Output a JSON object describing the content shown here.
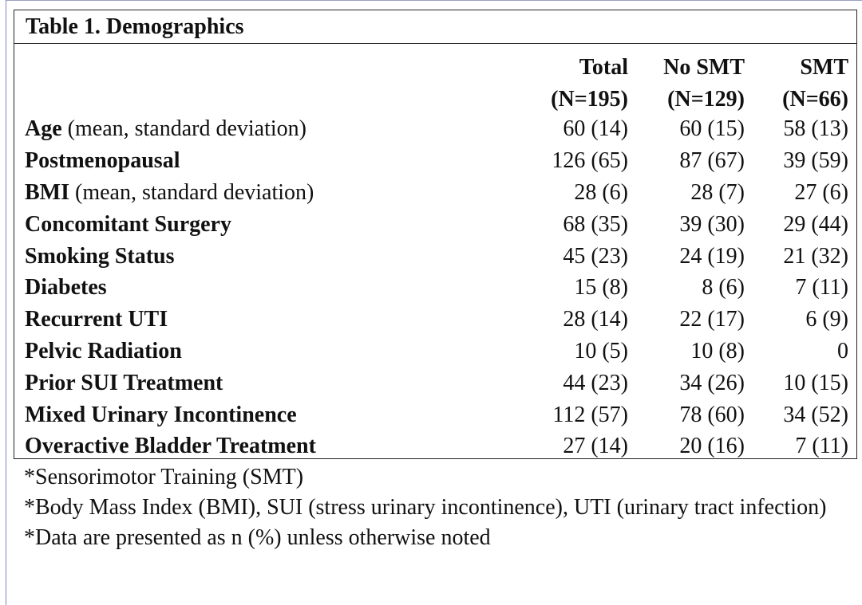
{
  "title": "Table 1. Demographics",
  "columns": [
    {
      "name": "Total",
      "n": "(N=195)"
    },
    {
      "name": "No SMT",
      "n": "(N=129)"
    },
    {
      "name": "SMT",
      "n": "(N=66)"
    }
  ],
  "rows": [
    {
      "label": "Age",
      "note": " (mean, standard deviation)",
      "values": [
        "60 (14)",
        "60 (15)",
        "58 (13)"
      ]
    },
    {
      "label": "Postmenopausal",
      "note": "",
      "values": [
        "126 (65)",
        "87 (67)",
        "39 (59)"
      ]
    },
    {
      "label": "BMI",
      "note": " (mean, standard deviation)",
      "values": [
        "28 (6)",
        "28 (7)",
        "27 (6)"
      ]
    },
    {
      "label": "Concomitant Surgery",
      "note": "",
      "values": [
        "68 (35)",
        "39 (30)",
        "29 (44)"
      ]
    },
    {
      "label": "Smoking Status",
      "note": "",
      "values": [
        "45 (23)",
        "24 (19)",
        "21 (32)"
      ]
    },
    {
      "label": "Diabetes",
      "note": "",
      "values": [
        "15 (8)",
        "8 (6)",
        "7 (11)"
      ]
    },
    {
      "label": "Recurrent UTI",
      "note": "",
      "values": [
        "28 (14)",
        "22 (17)",
        "6 (9)"
      ]
    },
    {
      "label": "Pelvic Radiation",
      "note": "",
      "values": [
        "10 (5)",
        "10 (8)",
        "0"
      ]
    },
    {
      "label": "Prior SUI Treatment",
      "note": "",
      "values": [
        "44 (23)",
        "34 (26)",
        "10 (15)"
      ]
    },
    {
      "label": "Mixed Urinary Incontinence",
      "note": "",
      "values": [
        "112 (57)",
        "78 (60)",
        "34 (52)"
      ]
    },
    {
      "label": "Overactive Bladder Treatment",
      "note": "",
      "values": [
        "27 (14)",
        "20 (16)",
        "7 (11)"
      ]
    }
  ],
  "footnotes": [
    "*Sensorimotor Training (SMT)",
    "*Body Mass Index (BMI), SUI (stress urinary incontinence), UTI (urinary tract infection)",
    "*Data are presented as n (%) unless otherwise noted"
  ]
}
